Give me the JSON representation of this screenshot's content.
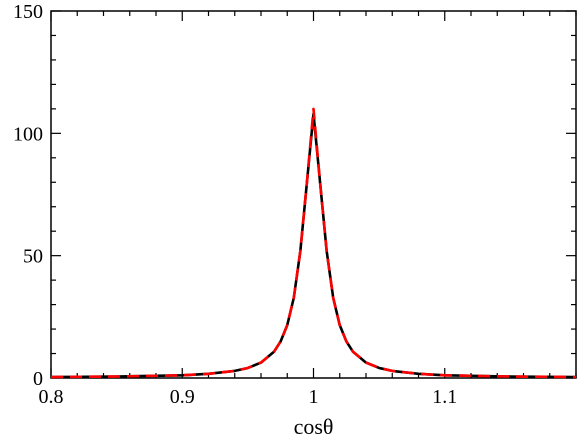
{
  "chart_data": {
    "type": "line",
    "title": "",
    "xlabel": "cosθ",
    "ylabel": "",
    "xlim": [
      0.8,
      1.2
    ],
    "ylim": [
      0,
      150
    ],
    "x_ticks": [
      0.8,
      0.9,
      1.0,
      1.1
    ],
    "x_tick_labels": [
      "0.8",
      "0.9",
      "1",
      "1.1"
    ],
    "y_ticks": [
      0,
      50,
      100,
      150
    ],
    "y_tick_labels": [
      "0",
      "50",
      "100",
      "150"
    ],
    "grid": false,
    "legend": "none",
    "series": [
      {
        "style": "solid",
        "color": "#000000",
        "x": [
          0.8,
          0.85,
          0.9,
          0.92,
          0.94,
          0.95,
          0.96,
          0.97,
          0.975,
          0.98,
          0.985,
          0.99,
          0.995,
          1.0,
          1.005,
          1.01,
          1.015,
          1.02,
          1.025,
          1.03,
          1.04,
          1.05,
          1.06,
          1.08,
          1.1,
          1.15,
          1.2
        ],
        "y": [
          0.4,
          0.6,
          1.1,
          1.7,
          2.9,
          4.1,
          6.3,
          10.8,
          15.0,
          21.6,
          32.8,
          52.0,
          80.0,
          108.0,
          80.0,
          52.0,
          32.8,
          21.6,
          15.0,
          10.8,
          6.3,
          4.1,
          2.9,
          1.7,
          1.1,
          0.6,
          0.4
        ]
      },
      {
        "style": "dashed",
        "color": "#ff0000",
        "x": [
          0.8,
          0.85,
          0.9,
          0.92,
          0.94,
          0.95,
          0.96,
          0.97,
          0.975,
          0.98,
          0.985,
          0.99,
          0.995,
          1.0,
          1.005,
          1.01,
          1.015,
          1.02,
          1.025,
          1.03,
          1.04,
          1.05,
          1.06,
          1.08,
          1.1,
          1.15,
          1.2
        ],
        "y": [
          0.4,
          0.6,
          1.1,
          1.7,
          2.9,
          4.1,
          6.3,
          10.8,
          15.0,
          21.6,
          32.8,
          52.0,
          80.0,
          110.0,
          80.0,
          52.0,
          32.8,
          21.6,
          15.0,
          10.8,
          6.3,
          4.1,
          2.9,
          1.7,
          1.1,
          0.6,
          0.4
        ]
      }
    ]
  }
}
